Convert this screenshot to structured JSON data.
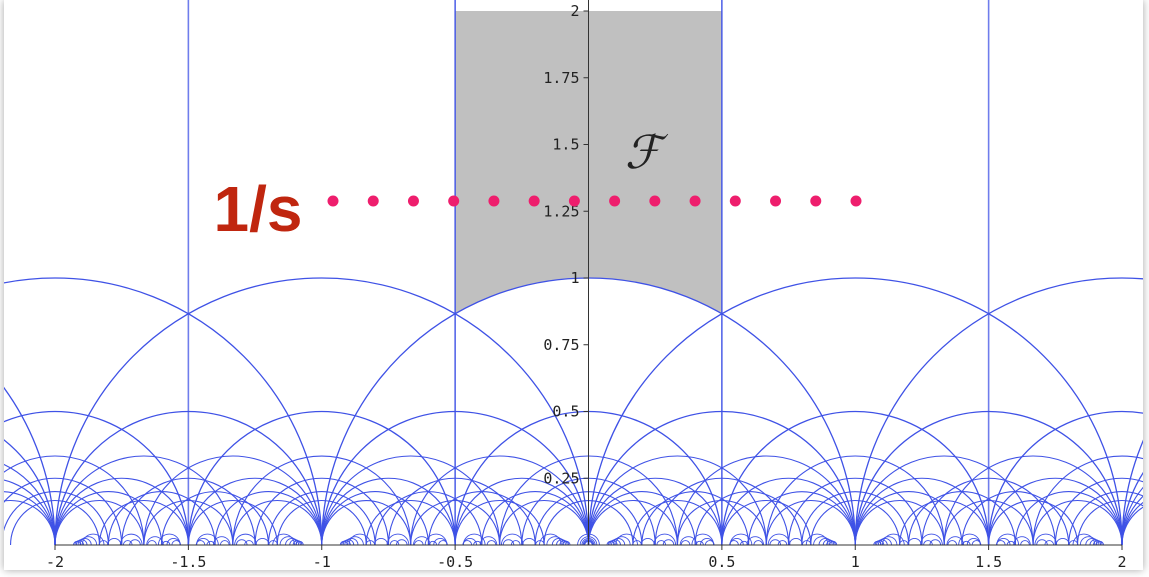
{
  "chart_data": {
    "type": "diagram",
    "description_kind": "modular-tessellation",
    "xlim": [
      -2,
      2
    ],
    "ylim": [
      0,
      2
    ],
    "x_ticks": [
      {
        "value": -2,
        "label": "-2"
      },
      {
        "value": -1.5,
        "label": "-1.5"
      },
      {
        "value": -1,
        "label": "-1"
      },
      {
        "value": -0.5,
        "label": "-0.5"
      },
      {
        "value": 0.5,
        "label": "0.5"
      },
      {
        "value": 1,
        "label": "1"
      },
      {
        "value": 1.5,
        "label": "1.5"
      },
      {
        "value": 2,
        "label": "2"
      }
    ],
    "y_ticks": [
      {
        "value": 0.25,
        "label": "0.25"
      },
      {
        "value": 0.5,
        "label": "0.5"
      },
      {
        "value": 0.75,
        "label": "0.75"
      },
      {
        "value": 1,
        "label": "1"
      },
      {
        "value": 1.25,
        "label": "1.25"
      },
      {
        "value": 1.5,
        "label": "1.5"
      },
      {
        "value": 1.75,
        "label": "1.75"
      },
      {
        "value": 2,
        "label": "2"
      }
    ],
    "vertical_lines_x": [
      -1.5,
      -0.5,
      0.5,
      1.5
    ],
    "shaded_region": {
      "x_range": [
        -0.5,
        0.5
      ],
      "lower_boundary": "unit-circle",
      "upper_y": 2
    },
    "dotted_line": {
      "y": 1.25,
      "x_range": [
        -1,
        1
      ],
      "dot_count": 14
    },
    "arc_levels": [
      1,
      2,
      3,
      4,
      5,
      6
    ]
  },
  "labels": {
    "region": "ℱ",
    "dotted_line": "1/s"
  },
  "colors": {
    "curve": "#3f52e6",
    "shade": "#c0c0c0",
    "dots": "#ee1e6d",
    "label_red": "#c0260f",
    "axis": "#333333"
  }
}
